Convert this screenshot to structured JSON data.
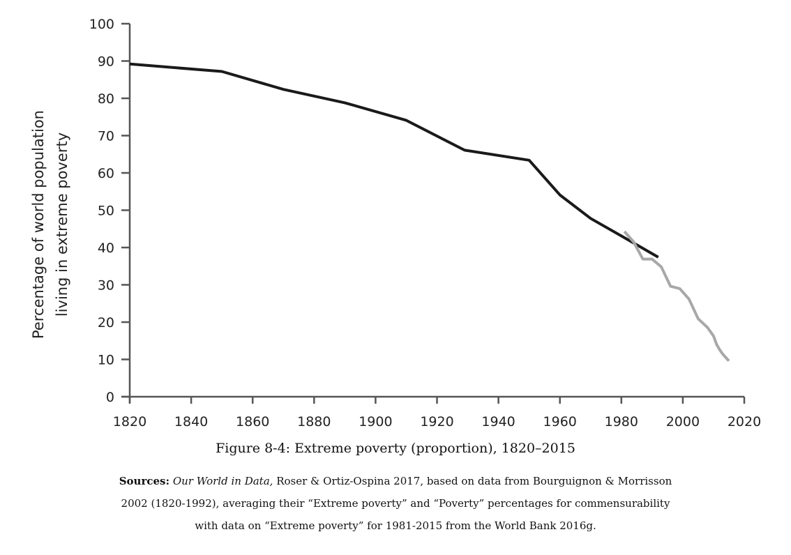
{
  "chart_data": {
    "type": "line",
    "title": "Figure 8-4: Extreme poverty (proportion), 1820–2015",
    "ylabel_lines": [
      "Percentage of world population",
      "living in extreme poverty"
    ],
    "xlabel": "",
    "xlim": [
      1820,
      2020
    ],
    "ylim": [
      0,
      100
    ],
    "xticks": [
      1820,
      1840,
      1860,
      1880,
      1900,
      1920,
      1940,
      1960,
      1980,
      2000,
      2020
    ],
    "yticks": [
      0,
      10,
      20,
      30,
      40,
      50,
      60,
      70,
      80,
      90,
      100
    ],
    "grid": false,
    "legend": "none",
    "series": [
      {
        "color": "#1a1a1a",
        "x": [
          1820,
          1850,
          1870,
          1890,
          1910,
          1929,
          1950,
          1960,
          1970,
          1980,
          1992
        ],
        "y": [
          89.2,
          87.2,
          82.4,
          78.8,
          74.1,
          66.1,
          63.4,
          54.1,
          47.8,
          43.1,
          37.4
        ]
      },
      {
        "color": "#a8a8a8",
        "x": [
          1981,
          1984,
          1987,
          1990,
          1993,
          1996,
          1999,
          2002,
          2005,
          2008,
          2010,
          2011,
          2012,
          2013,
          2015
        ],
        "y": [
          44.3,
          41.5,
          36.9,
          36.9,
          34.8,
          29.6,
          29.0,
          26.2,
          20.9,
          18.6,
          16.3,
          14.0,
          12.6,
          11.4,
          9.6
        ]
      }
    ]
  },
  "figure_caption": "Figure 8-4: Extreme poverty (proportion), 1820–2015",
  "sources": {
    "label": "Sources:",
    "italic": "Our World in Data,",
    "line1_rest": " Roser & Ortiz-Ospina 2017, based on data from Bourguignon & Morrisson",
    "line2": "2002 (1820-1992), averaging their “Extreme poverty” and “Poverty” percentages for commensurability",
    "line3": "with data on “Extreme poverty” for 1981-2015 from the World Bank 2016g."
  }
}
